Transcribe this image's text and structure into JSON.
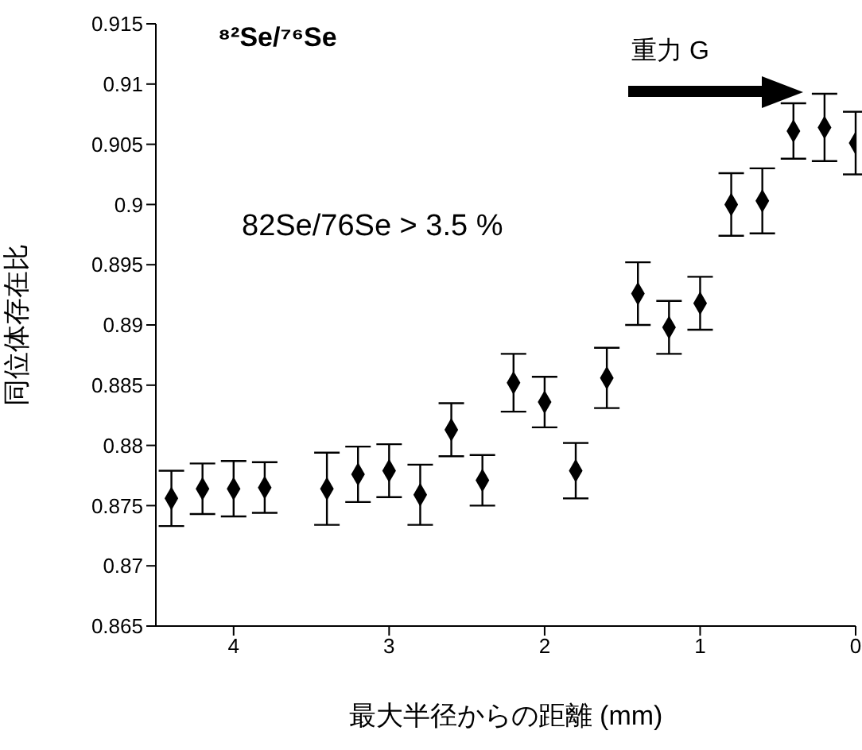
{
  "chart_data": {
    "type": "scatter",
    "xlabel": "最大半径からの距離 (mm)",
    "ylabel": "同位体存在比",
    "annotations": [
      "⁸²Se/⁷⁶Se",
      "82Se/76Se > 3.5 %",
      "重力 G"
    ],
    "x": [
      4.4,
      4.2,
      4.0,
      3.8,
      3.4,
      3.2,
      3.0,
      2.8,
      2.6,
      2.4,
      2.2,
      2.0,
      1.8,
      1.6,
      1.4,
      1.2,
      1.0,
      0.8,
      0.6,
      0.4,
      0.2,
      0.0
    ],
    "values": [
      0.8756,
      0.8764,
      0.8764,
      0.8765,
      0.8764,
      0.8776,
      0.8779,
      0.8759,
      0.8813,
      0.8771,
      0.8852,
      0.8836,
      0.8779,
      0.8856,
      0.8926,
      0.8898,
      0.8918,
      0.9,
      0.9003,
      0.9061,
      0.9064,
      0.9051
    ],
    "errors": [
      0.0023,
      0.0021,
      0.0023,
      0.0021,
      0.003,
      0.0023,
      0.0022,
      0.0025,
      0.0022,
      0.0021,
      0.0024,
      0.0021,
      0.0023,
      0.0025,
      0.0026,
      0.0022,
      0.0022,
      0.0026,
      0.0027,
      0.0023,
      0.0028,
      0.0026
    ],
    "color": "#000000",
    "marker": "diamond",
    "xlim": [
      4.5,
      0
    ],
    "xticks": [
      4,
      3,
      2,
      1,
      0
    ],
    "ylim": [
      0.865,
      0.915
    ],
    "yticks": [
      0.865,
      0.87,
      0.875,
      0.88,
      0.885,
      0.89,
      0.895,
      0.9,
      0.905,
      0.91,
      0.915
    ],
    "grid": false
  }
}
